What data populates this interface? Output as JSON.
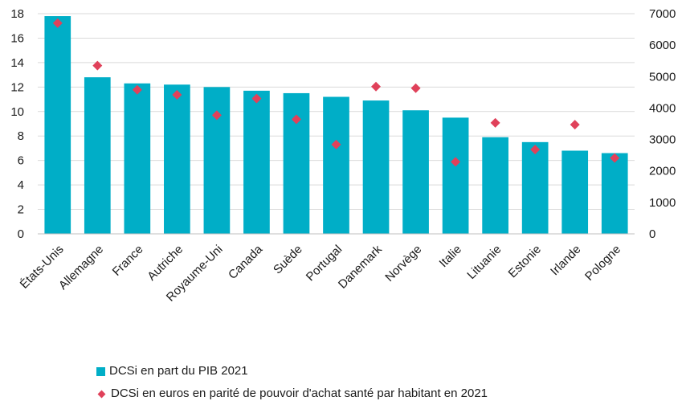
{
  "colors": {
    "bar": "#00aec7",
    "marker": "#e0415a",
    "grid": "#d9d9d9"
  },
  "chart_data": {
    "type": "bar",
    "categories": [
      "États-Unis",
      "Allemagne",
      "France",
      "Autriche",
      "Royaume-Uni",
      "Canada",
      "Suède",
      "Portugal",
      "Danemark",
      "Norvège",
      "Italie",
      "Lituanie",
      "Estonie",
      "Irlande",
      "Pologne"
    ],
    "series": [
      {
        "name": "DCSi en part du PIB 2021",
        "type": "bar",
        "axis": "left",
        "values": [
          17.8,
          12.8,
          12.3,
          12.2,
          12.0,
          11.7,
          11.5,
          11.2,
          10.9,
          10.1,
          9.5,
          7.9,
          7.5,
          6.8,
          6.6
        ]
      },
      {
        "name": "DCSi en euros en parité de pouvoir d'achat santé par habitant en 2021",
        "type": "scatter",
        "marker": "diamond",
        "axis": "right",
        "values": [
          6700,
          5350,
          4580,
          4420,
          3770,
          4300,
          3640,
          2840,
          4680,
          4630,
          2290,
          3530,
          2680,
          3470,
          2410
        ]
      }
    ],
    "y_left": {
      "min": 0,
      "max": 18,
      "ticks": [
        "0",
        "2",
        "4",
        "6",
        "8",
        "10",
        "12",
        "14",
        "16",
        "18"
      ]
    },
    "y_right": {
      "min": 0,
      "max": 7000,
      "ticks": [
        "0",
        "1000",
        "2000",
        "3000",
        "4000",
        "5000",
        "6000",
        "7000"
      ]
    },
    "grid": "horizontal",
    "legend_position": "bottom"
  }
}
